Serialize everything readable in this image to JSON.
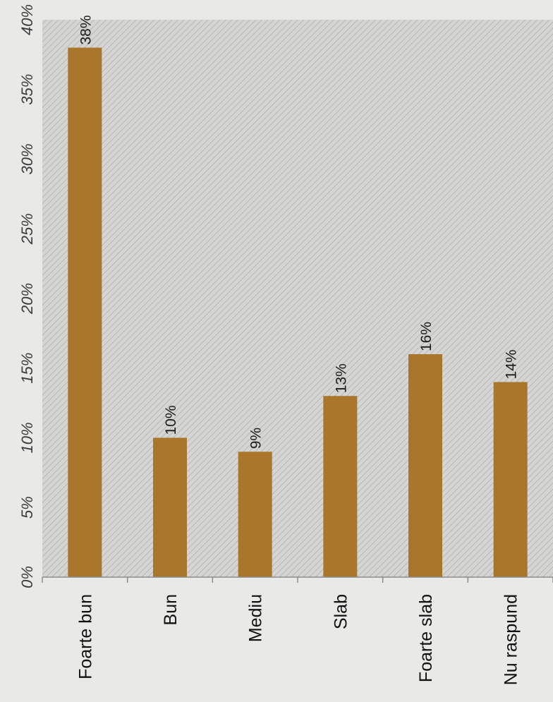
{
  "chart_data": {
    "type": "bar",
    "orientation": "vertical",
    "categories": [
      "Foarte bun",
      "Bun",
      "Mediu",
      "Slab",
      "Foarte slab",
      "Nu raspund"
    ],
    "values": [
      38,
      10,
      9,
      13,
      16,
      14
    ],
    "data_labels": [
      "38%",
      "10%",
      "9%",
      "13%",
      "16%",
      "14%"
    ],
    "y_ticks": [
      0,
      5,
      10,
      15,
      20,
      25,
      30,
      35,
      40
    ],
    "y_tick_labels": [
      "0%",
      "5%",
      "10%",
      "15%",
      "20%",
      "25%",
      "30%",
      "35%",
      "40%"
    ],
    "ylim": [
      0,
      40
    ],
    "title": "",
    "xlabel": "",
    "ylabel": "",
    "grid": false,
    "legend": "none",
    "colors": {
      "bar": "#a9762c",
      "plot_background": "#d5d5d3",
      "hatch": "#b1b1af",
      "page_background": "#e9e9e7",
      "axis": "#8c8c8c",
      "text": "#1a1a1a"
    }
  }
}
